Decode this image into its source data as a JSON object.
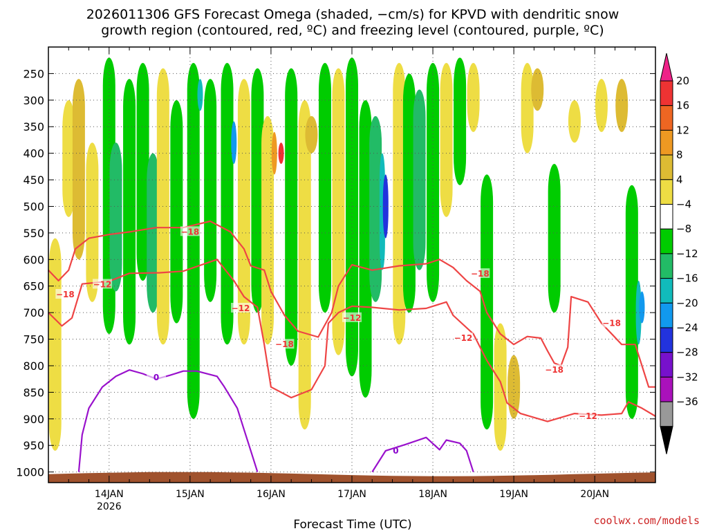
{
  "chart_data": {
    "type": "heatmap",
    "title_line1": "2026011306 GFS Forecast Omega (shaded, −cm/s) for KPVD with dendritic snow",
    "title_line2": "growth region (contoured, red, ºC) and freezing level (contoured, purple, ºC)",
    "xlabel": "Forecast Time (UTC)",
    "ylabel": "",
    "credit": "coolwx.com/models",
    "x_ticks": [
      {
        "label": "14JAN",
        "sub": "2026",
        "hours": 18
      },
      {
        "label": "15JAN",
        "sub": "",
        "hours": 42
      },
      {
        "label": "16JAN",
        "sub": "",
        "hours": 66
      },
      {
        "label": "17JAN",
        "sub": "",
        "hours": 90
      },
      {
        "label": "18JAN",
        "sub": "",
        "hours": 114
      },
      {
        "label": "19JAN",
        "sub": "",
        "hours": 138
      },
      {
        "label": "20JAN",
        "sub": "",
        "hours": 162
      }
    ],
    "x_range_hours": [
      0,
      180
    ],
    "y_ticks": [
      "250",
      "300",
      "350",
      "400",
      "450",
      "500",
      "550",
      "600",
      "650",
      "700",
      "750",
      "800",
      "850",
      "900",
      "950",
      "1000"
    ],
    "y_range_hpa": [
      200,
      1020
    ],
    "colorbar": {
      "labels": [
        "20",
        "16",
        "12",
        "8",
        "4",
        "−4",
        "−8",
        "−12",
        "−16",
        "−20",
        "−24",
        "−28",
        "−32",
        "−36"
      ],
      "colors": [
        "#ee3333",
        "#ee6622",
        "#ee9922",
        "#ddbb33",
        "#eedd44",
        "#ffffff",
        "#00cc00",
        "#22bb66",
        "#11bbbb",
        "#1199ee",
        "#2233dd",
        "#7711cc",
        "#aa11bb",
        "#999999"
      ],
      "top_arrow_color": "#ee2288",
      "bottom_arrow_color": "#000000"
    },
    "palette": {
      "green": "#00cc00",
      "teal": "#22bb66",
      "cyan": "#11bbbb",
      "yellow": "#eedd44",
      "gold": "#ddbb33",
      "orange": "#ee9922",
      "red": "#ee3333",
      "contour_red": "#ee4444",
      "contour_purple": "#9911cc",
      "ground": "#a0522d"
    },
    "omega_bands": [
      {
        "h": 2,
        "p1": 560,
        "p2": 960,
        "value": 4
      },
      {
        "h": 6,
        "p1": 300,
        "p2": 520,
        "value": 4
      },
      {
        "h": 9,
        "p1": 260,
        "p2": 600,
        "value": 8
      },
      {
        "h": 13,
        "p1": 380,
        "p2": 680,
        "value": 4
      },
      {
        "h": 18,
        "p1": 220,
        "p2": 740,
        "value": -8
      },
      {
        "h": 20,
        "p1": 380,
        "p2": 660,
        "value": -12
      },
      {
        "h": 24,
        "p1": 260,
        "p2": 760,
        "value": -4
      },
      {
        "h": 28,
        "p1": 230,
        "p2": 640,
        "value": -8
      },
      {
        "h": 31,
        "p1": 400,
        "p2": 700,
        "value": -12
      },
      {
        "h": 34,
        "p1": 240,
        "p2": 760,
        "value": 4
      },
      {
        "h": 38,
        "p1": 300,
        "p2": 720,
        "value": -8
      },
      {
        "h": 43,
        "p1": 230,
        "p2": 900,
        "value": -8
      },
      {
        "h": 45,
        "p1": 260,
        "p2": 320,
        "value": -16
      },
      {
        "h": 48,
        "p1": 260,
        "p2": 680,
        "value": -4
      },
      {
        "h": 53,
        "p1": 230,
        "p2": 760,
        "value": -8
      },
      {
        "h": 55,
        "p1": 340,
        "p2": 420,
        "value": -20
      },
      {
        "h": 58,
        "p1": 260,
        "p2": 760,
        "value": 4
      },
      {
        "h": 62,
        "p1": 240,
        "p2": 700,
        "value": -4
      },
      {
        "h": 65,
        "p1": 330,
        "p2": 760,
        "value": 4
      },
      {
        "h": 67,
        "p1": 360,
        "p2": 440,
        "value": 12
      },
      {
        "h": 69,
        "p1": 380,
        "p2": 420,
        "value": 20
      },
      {
        "h": 72,
        "p1": 240,
        "p2": 800,
        "value": -4
      },
      {
        "h": 76,
        "p1": 300,
        "p2": 920,
        "value": 4
      },
      {
        "h": 78,
        "p1": 330,
        "p2": 400,
        "value": 8
      },
      {
        "h": 82,
        "p1": 230,
        "p2": 700,
        "value": -8
      },
      {
        "h": 86,
        "p1": 240,
        "p2": 780,
        "value": 4
      },
      {
        "h": 90,
        "p1": 220,
        "p2": 820,
        "value": -8
      },
      {
        "h": 94,
        "p1": 300,
        "p2": 860,
        "value": -8
      },
      {
        "h": 97,
        "p1": 330,
        "p2": 680,
        "value": -12
      },
      {
        "h": 99,
        "p1": 400,
        "p2": 620,
        "value": -16
      },
      {
        "h": 100,
        "p1": 440,
        "p2": 560,
        "value": -24
      },
      {
        "h": 104,
        "p1": 230,
        "p2": 760,
        "value": 4
      },
      {
        "h": 107,
        "p1": 250,
        "p2": 700,
        "value": -8
      },
      {
        "h": 110,
        "p1": 280,
        "p2": 620,
        "value": -12
      },
      {
        "h": 114,
        "p1": 230,
        "p2": 680,
        "value": -8
      },
      {
        "h": 118,
        "p1": 230,
        "p2": 520,
        "value": 4
      },
      {
        "h": 122,
        "p1": 220,
        "p2": 460,
        "value": -8
      },
      {
        "h": 126,
        "p1": 230,
        "p2": 360,
        "value": 4
      },
      {
        "h": 130,
        "p1": 440,
        "p2": 920,
        "value": -8
      },
      {
        "h": 134,
        "p1": 720,
        "p2": 960,
        "value": 4
      },
      {
        "h": 138,
        "p1": 780,
        "p2": 900,
        "value": 8
      },
      {
        "h": 142,
        "p1": 230,
        "p2": 400,
        "value": 4
      },
      {
        "h": 145,
        "p1": 240,
        "p2": 320,
        "value": 8
      },
      {
        "h": 150,
        "p1": 420,
        "p2": 700,
        "value": -8
      },
      {
        "h": 156,
        "p1": 300,
        "p2": 380,
        "value": 4
      },
      {
        "h": 164,
        "p1": 260,
        "p2": 360,
        "value": 4
      },
      {
        "h": 170,
        "p1": 260,
        "p2": 360,
        "value": 8
      },
      {
        "h": 173,
        "p1": 460,
        "p2": 900,
        "value": -8
      },
      {
        "h": 175,
        "p1": 640,
        "p2": 760,
        "value": -16
      },
      {
        "h": 176,
        "p1": 660,
        "p2": 720,
        "value": -20
      }
    ],
    "dgz_contours": [
      {
        "label": "−12",
        "label_at": [
          [
            16,
            647
          ],
          [
            57,
            692
          ],
          [
            90,
            710
          ],
          [
            123,
            748
          ],
          [
            160,
            895
          ]
        ],
        "points": [
          [
            0,
            700
          ],
          [
            4,
            725
          ],
          [
            7,
            710
          ],
          [
            10,
            646
          ],
          [
            18,
            641
          ],
          [
            24,
            626
          ],
          [
            33,
            625
          ],
          [
            40,
            622
          ],
          [
            50,
            600
          ],
          [
            55,
            640
          ],
          [
            58,
            670
          ],
          [
            62,
            690
          ],
          [
            64,
            760
          ],
          [
            66,
            840
          ],
          [
            72,
            860
          ],
          [
            78,
            845
          ],
          [
            82,
            800
          ],
          [
            83,
            720
          ],
          [
            86,
            700
          ],
          [
            90,
            688
          ],
          [
            96,
            690
          ],
          [
            104,
            695
          ],
          [
            112,
            692
          ],
          [
            118,
            680
          ],
          [
            120,
            705
          ],
          [
            126,
            740
          ],
          [
            130,
            790
          ],
          [
            134,
            830
          ],
          [
            136,
            870
          ],
          [
            140,
            890
          ],
          [
            148,
            905
          ],
          [
            156,
            890
          ],
          [
            164,
            893
          ],
          [
            170,
            890
          ],
          [
            172,
            868
          ],
          [
            176,
            880
          ],
          [
            180,
            895
          ]
        ]
      },
      {
        "label": "−18",
        "label_at": [
          [
            5,
            666
          ],
          [
            42,
            548
          ],
          [
            70,
            760
          ],
          [
            128,
            627
          ],
          [
            150,
            808
          ],
          [
            167,
            720
          ]
        ],
        "points": [
          [
            0,
            620
          ],
          [
            3,
            640
          ],
          [
            6,
            620
          ],
          [
            8,
            580
          ],
          [
            12,
            560
          ],
          [
            18,
            553
          ],
          [
            24,
            548
          ],
          [
            32,
            540
          ],
          [
            40,
            540
          ],
          [
            48,
            528
          ],
          [
            54,
            548
          ],
          [
            58,
            580
          ],
          [
            60,
            612
          ],
          [
            64,
            620
          ],
          [
            66,
            660
          ],
          [
            70,
            705
          ],
          [
            74,
            735
          ],
          [
            80,
            746
          ],
          [
            84,
            700
          ],
          [
            86,
            650
          ],
          [
            90,
            610
          ],
          [
            96,
            620
          ],
          [
            104,
            612
          ],
          [
            112,
            608
          ],
          [
            116,
            600
          ],
          [
            120,
            615
          ],
          [
            124,
            640
          ],
          [
            128,
            660
          ],
          [
            130,
            700
          ],
          [
            134,
            740
          ],
          [
            138,
            760
          ],
          [
            142,
            745
          ],
          [
            146,
            748
          ],
          [
            148,
            772
          ],
          [
            150,
            795
          ],
          [
            152,
            800
          ],
          [
            154,
            765
          ],
          [
            155,
            670
          ],
          [
            160,
            680
          ],
          [
            164,
            720
          ],
          [
            170,
            760
          ],
          [
            174,
            760
          ],
          [
            176,
            800
          ],
          [
            178,
            840
          ],
          [
            180,
            840
          ]
        ]
      }
    ],
    "freezing_contours": [
      {
        "label": "0",
        "label_at": [
          [
            32,
            822
          ],
          [
            103,
            960
          ]
        ],
        "points": [
          [
            9,
            1000
          ],
          [
            10,
            930
          ],
          [
            12,
            880
          ],
          [
            16,
            840
          ],
          [
            20,
            820
          ],
          [
            24,
            808
          ],
          [
            28,
            815
          ],
          [
            32,
            825
          ],
          [
            36,
            818
          ],
          [
            40,
            810
          ],
          [
            44,
            810
          ],
          [
            50,
            820
          ],
          [
            52,
            838
          ],
          [
            56,
            880
          ],
          [
            58,
            920
          ],
          [
            60,
            960
          ],
          [
            62,
            1000
          ]
        ]
      },
      {
        "label": "0",
        "label_at": [],
        "points": [
          [
            96,
            1000
          ],
          [
            100,
            960
          ],
          [
            106,
            948
          ],
          [
            112,
            935
          ],
          [
            116,
            958
          ],
          [
            118,
            940
          ],
          [
            122,
            946
          ],
          [
            124,
            960
          ],
          [
            126,
            1000
          ]
        ]
      }
    ]
  }
}
